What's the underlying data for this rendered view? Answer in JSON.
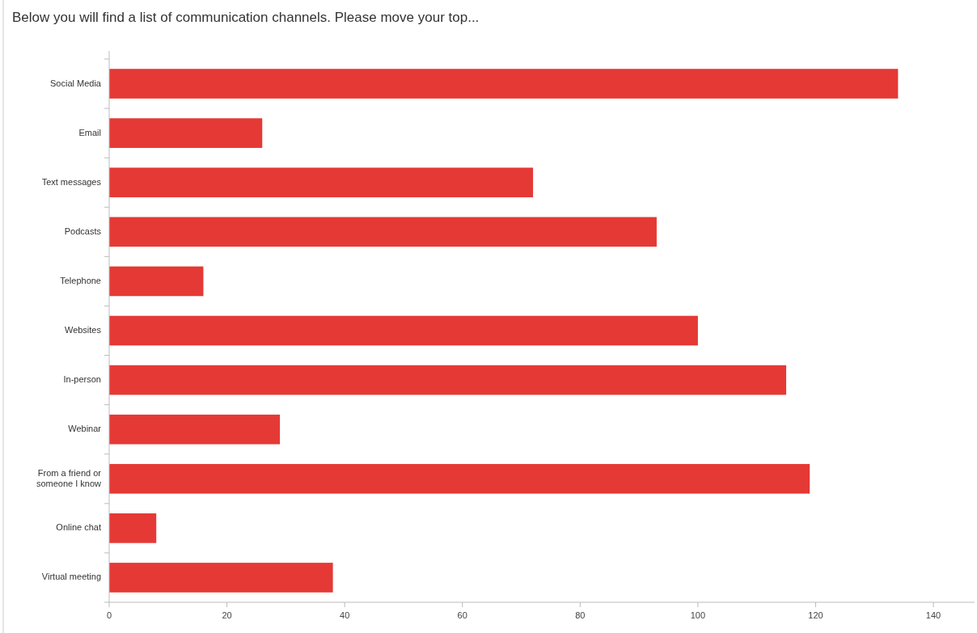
{
  "chart_data": {
    "type": "bar",
    "orientation": "horizontal",
    "title": "Below you will find a list of communication channels. Please move your top...",
    "categories": [
      "Social Media",
      "Email",
      "Text messages",
      "Podcasts",
      "Telephone",
      "Websites",
      "In-person",
      "Webinar",
      "From a friend or someone I know",
      "Online chat",
      "Virtual meeting"
    ],
    "values": [
      134,
      26,
      72,
      93,
      16,
      100,
      115,
      29,
      119,
      8,
      38
    ],
    "color": "#e53935",
    "xlim": [
      0,
      147
    ],
    "xticks": [
      0,
      20,
      40,
      60,
      80,
      100,
      120,
      140
    ],
    "grid": false
  }
}
